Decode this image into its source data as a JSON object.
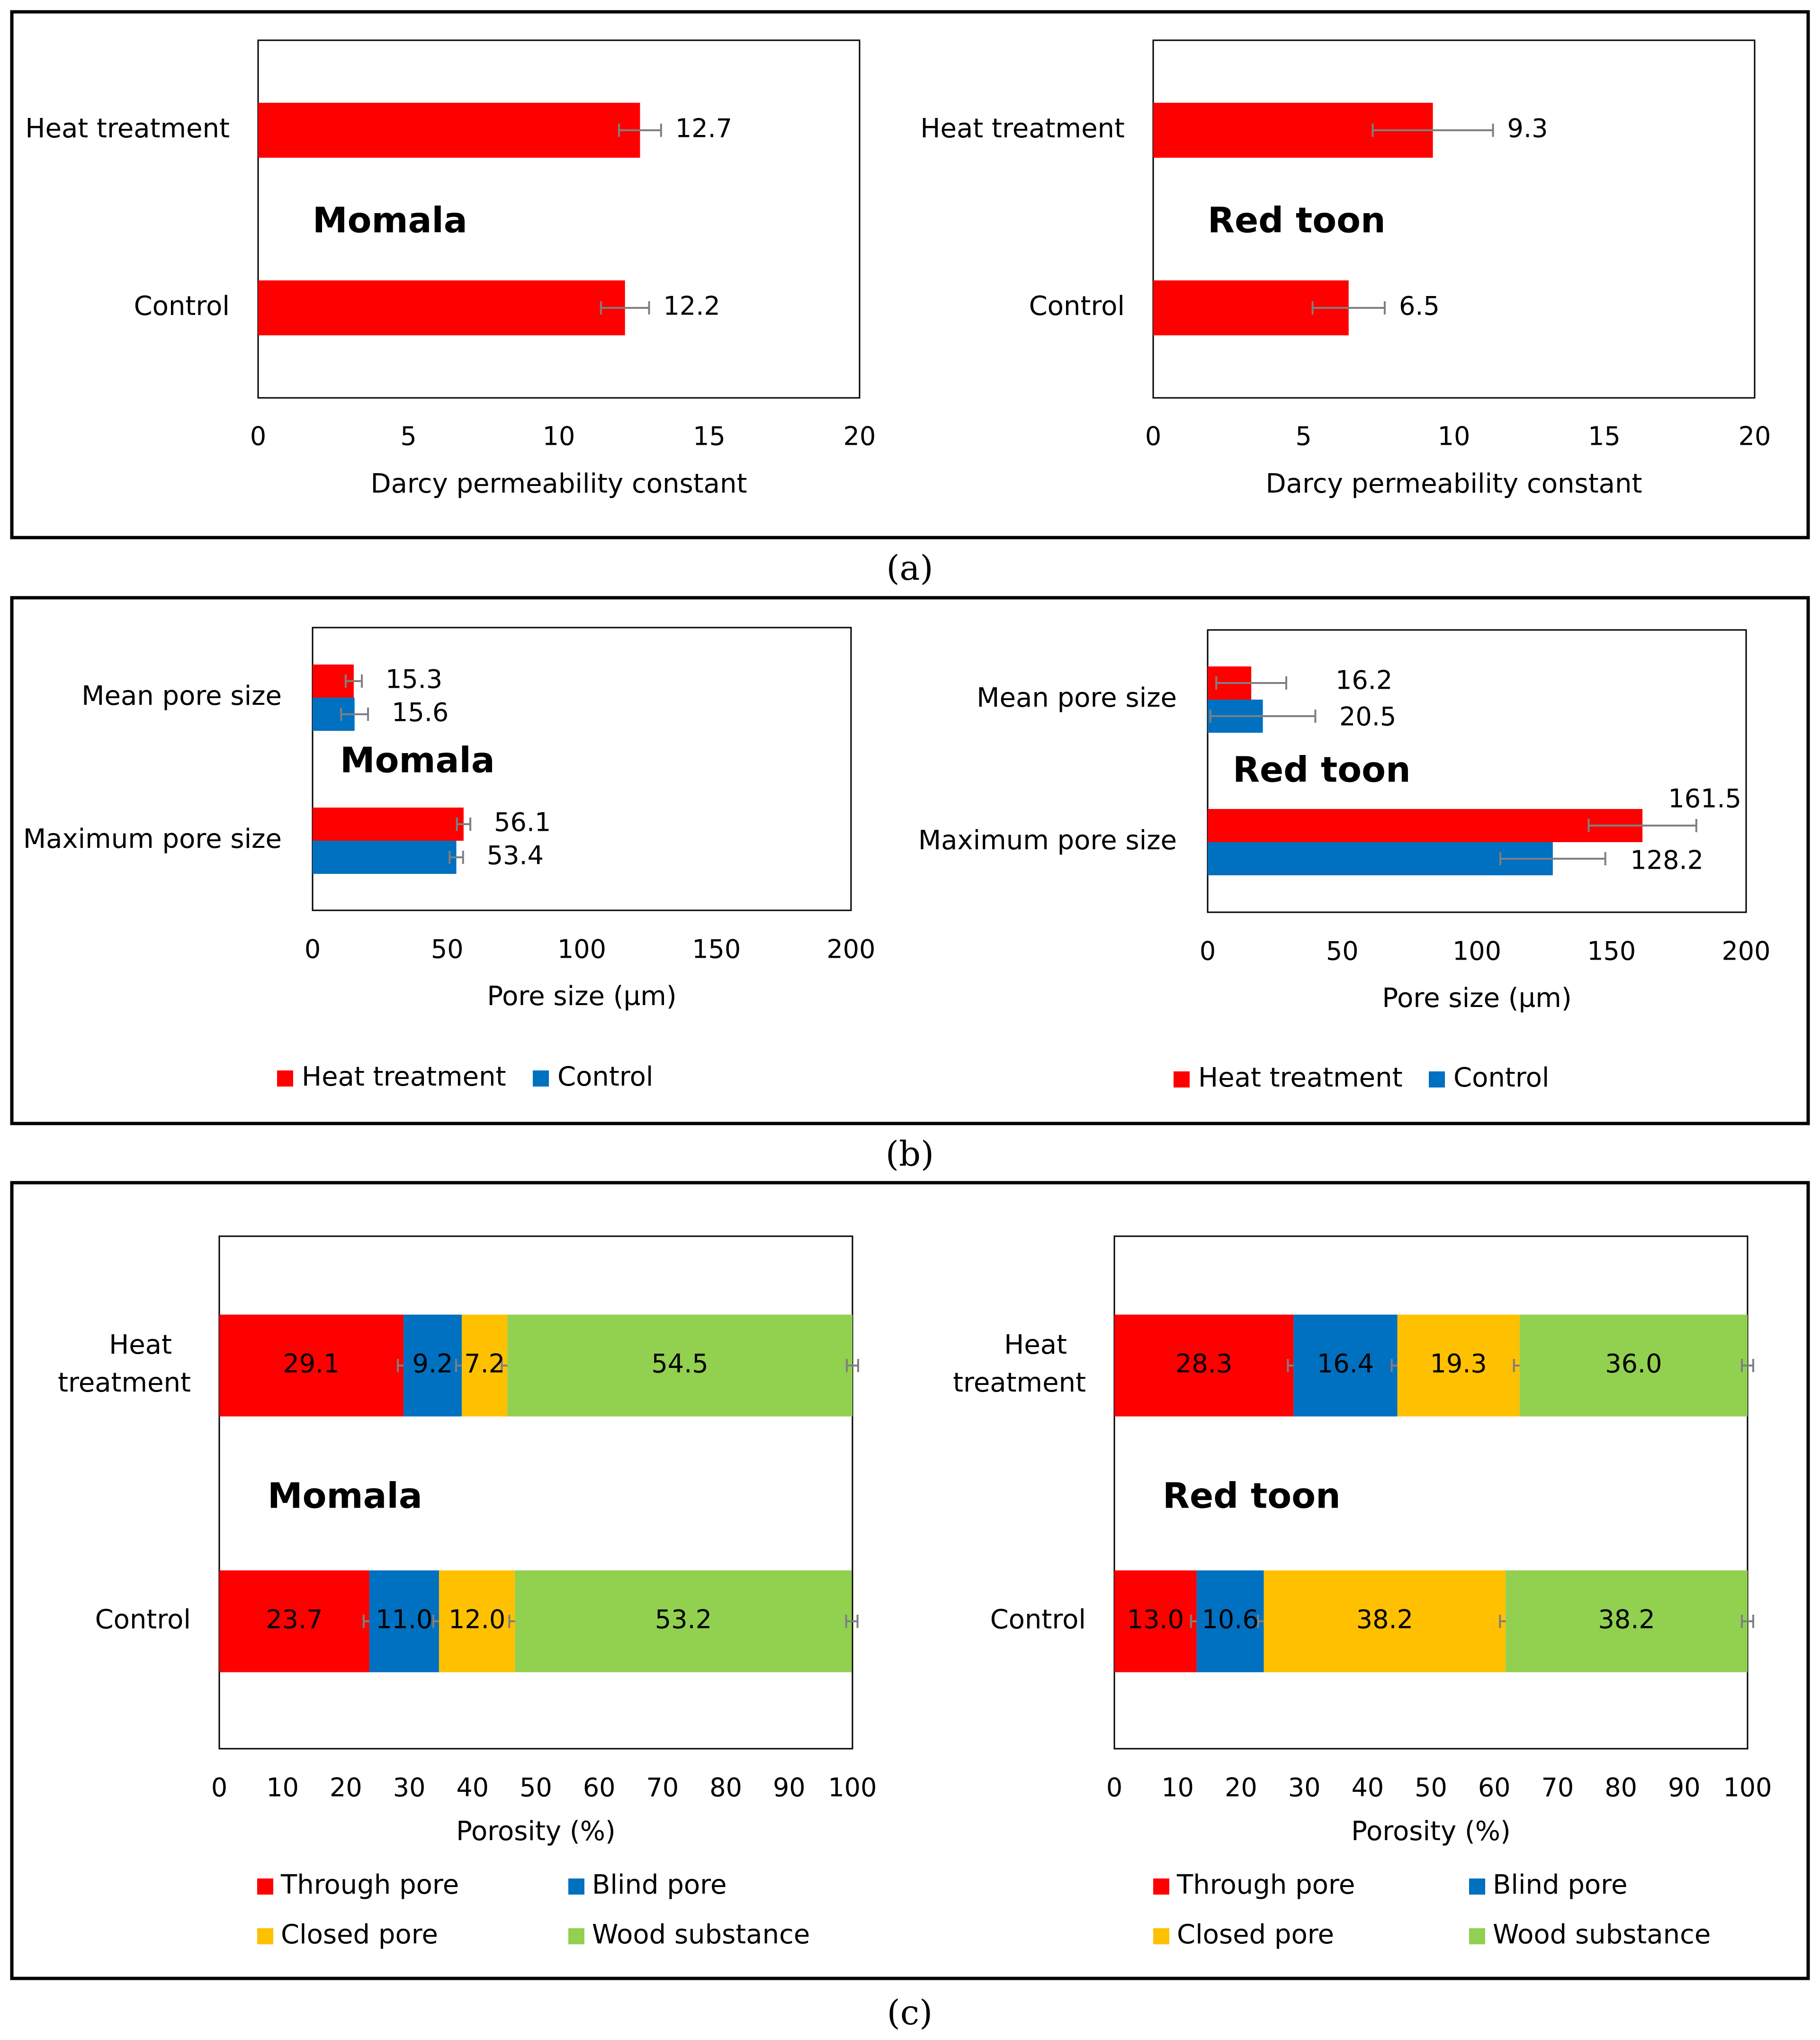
{
  "panel_labels": [
    "(a)",
    "(b)",
    "(c)"
  ],
  "colors": {
    "heat": "#FF0000",
    "control": "#0070C0",
    "through": "#FF0000",
    "blind": "#0070C0",
    "closed": "#FFC000",
    "wood": "#92D050",
    "error_bar": "#7F7F7F",
    "frame": "#000000"
  },
  "chart_data": [
    {
      "panel": "a",
      "type": "bar",
      "orientation": "horizontal",
      "title": "Momala",
      "categories": [
        "Heat treatment",
        "Control"
      ],
      "values": [
        12.7,
        12.2
      ],
      "labels": [
        "12.7",
        "12.2"
      ],
      "errors": [
        0.7,
        0.8
      ],
      "xlabel": "Darcy permeability constant",
      "xlim": [
        0,
        20
      ],
      "xticks": [
        "0",
        "5",
        "10",
        "15",
        "20"
      ],
      "color": "heat"
    },
    {
      "panel": "a",
      "type": "bar",
      "orientation": "horizontal",
      "title": "Red toon",
      "categories": [
        "Heat treatment",
        "Control"
      ],
      "values": [
        9.3,
        6.5
      ],
      "labels": [
        "9.3",
        "6.5"
      ],
      "errors": [
        2.0,
        1.2
      ],
      "xlabel": "Darcy permeability constant",
      "xlim": [
        0,
        20
      ],
      "xticks": [
        "0",
        "5",
        "10",
        "15",
        "20"
      ],
      "color": "heat"
    },
    {
      "panel": "b",
      "type": "bar",
      "orientation": "horizontal",
      "title": "Momala",
      "categories": [
        "Mean pore size",
        "Maximum pore size"
      ],
      "series": [
        {
          "name": "Heat treatment",
          "color": "heat",
          "values": [
            15.3,
            56.1
          ],
          "labels": [
            "15.3",
            "56.1"
          ],
          "errors": [
            3.0,
            2.5
          ]
        },
        {
          "name": "Control",
          "color": "control",
          "values": [
            15.6,
            53.4
          ],
          "labels": [
            "15.6",
            "53.4"
          ],
          "errors": [
            5.0,
            2.5
          ]
        }
      ],
      "xlabel": "Pore size (µm)",
      "xlim": [
        0,
        200
      ],
      "xticks": [
        "0",
        "50",
        "100",
        "150",
        "200"
      ],
      "legend": "bottom"
    },
    {
      "panel": "b",
      "type": "bar",
      "orientation": "horizontal",
      "title": "Red toon",
      "categories": [
        "Mean pore size",
        "Maximum pore size"
      ],
      "series": [
        {
          "name": "Heat treatment",
          "color": "heat",
          "values": [
            16.2,
            161.5
          ],
          "labels": [
            "16.2",
            "161.5"
          ],
          "errors": [
            13.0,
            20.0
          ]
        },
        {
          "name": "Control",
          "color": "control",
          "values": [
            20.5,
            128.2
          ],
          "labels": [
            "20.5",
            "128.2"
          ],
          "errors": [
            19.5,
            19.5
          ]
        }
      ],
      "xlabel": "Pore size (µm)",
      "xlim": [
        0,
        200
      ],
      "xticks": [
        "0",
        "50",
        "100",
        "150",
        "200"
      ],
      "legend": "bottom"
    },
    {
      "panel": "c",
      "type": "bar",
      "orientation": "horizontal",
      "stacked": true,
      "title": "Momala",
      "categories": [
        "Heat\ntreatment",
        "Control"
      ],
      "series": [
        {
          "name": "Through pore",
          "color": "through",
          "values": [
            29.1,
            23.7
          ],
          "labels": [
            "29.1",
            "23.7"
          ]
        },
        {
          "name": "Blind pore",
          "color": "blind",
          "values": [
            9.2,
            11.0
          ],
          "labels": [
            "9.2",
            "11.0"
          ]
        },
        {
          "name": "Closed pore",
          "color": "closed",
          "values": [
            7.2,
            12.0
          ],
          "labels": [
            "7.2",
            "12.0"
          ]
        },
        {
          "name": "Wood substance",
          "color": "wood",
          "values": [
            54.5,
            53.2
          ],
          "labels": [
            "54.5",
            "53.2"
          ]
        }
      ],
      "xlabel": "Porosity (%)",
      "xlim": [
        0,
        100
      ],
      "xticks": [
        "0",
        "10",
        "20",
        "30",
        "40",
        "50",
        "60",
        "70",
        "80",
        "90",
        "100"
      ],
      "legend": "bottom"
    },
    {
      "panel": "c",
      "type": "bar",
      "orientation": "horizontal",
      "stacked": true,
      "title": "Red toon",
      "categories": [
        "Heat\ntreatment",
        "Control"
      ],
      "series": [
        {
          "name": "Through pore",
          "color": "through",
          "values": [
            28.3,
            13.0
          ],
          "labels": [
            "28.3",
            "13.0"
          ]
        },
        {
          "name": "Blind pore",
          "color": "blind",
          "values": [
            16.4,
            10.6
          ],
          "labels": [
            "16.4",
            "10.6"
          ]
        },
        {
          "name": "Closed pore",
          "color": "closed",
          "values": [
            19.3,
            38.2
          ],
          "labels": [
            "19.3",
            "38.2"
          ]
        },
        {
          "name": "Wood substance",
          "color": "wood",
          "values": [
            36.0,
            38.2
          ],
          "labels": [
            "36.0",
            "38.2"
          ]
        }
      ],
      "xlabel": "Porosity (%)",
      "xlim": [
        0,
        100
      ],
      "xticks": [
        "0",
        "10",
        "20",
        "30",
        "40",
        "50",
        "60",
        "70",
        "80",
        "90",
        "100"
      ],
      "legend": "bottom"
    }
  ]
}
